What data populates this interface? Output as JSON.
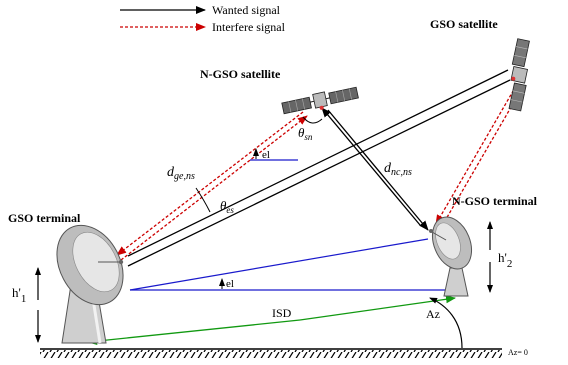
{
  "legend": {
    "wanted": "Wanted signal",
    "interfere": "Interfere signal"
  },
  "labels": {
    "ngso_satellite": "N-GSO satellite",
    "gso_satellite": "GSO satellite",
    "gso_terminal": "GSO terminal",
    "ngso_terminal": "N-GSO terminal",
    "theta_sn": "θ",
    "theta_sn_sub": "sn",
    "theta_es": "θ",
    "theta_es_sub": "es",
    "d_ge_ns": "d",
    "d_ge_ns_sub": "ge,ns",
    "d_nc_ns": "d",
    "d_nc_ns_sub": "nc,ns",
    "el_upper": "el",
    "el_lower": "el",
    "h1": "h'",
    "h1_sub": "1",
    "h2": "h'",
    "h2_sub": "2",
    "isd": "ISD",
    "az": "Az",
    "az_zero": "Az= 0"
  },
  "colors": {
    "wanted": "#000000",
    "interfere": "#cc0000",
    "elevation": "#1a1acc",
    "isd": "#119911",
    "ground": "#000000"
  }
}
